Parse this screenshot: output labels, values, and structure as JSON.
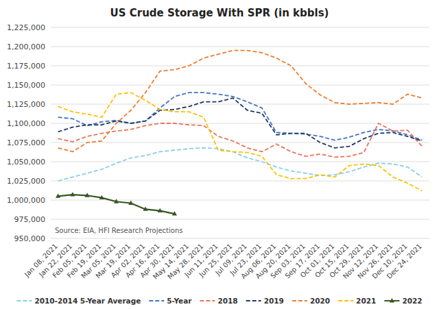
{
  "chart_data": {
    "type": "line",
    "title": "US Crude Storage With SPR (in kbbls)",
    "annotations": [
      "Source: EIA, HFI Research Projections"
    ],
    "categories": [
      "Jan 08, 2021",
      "Jan 22, 2021",
      "Feb 05, 2021",
      "Feb 19, 2021",
      "Mar 05, 2021",
      "Mar 19, 2021",
      "Apr 02, 2021",
      "Apr 16, 2021",
      "Apr 30, 2021",
      "May 14, 2021",
      "May 28, 2021",
      "Jun 11, 2021",
      "Jun 25, 2021",
      "Jul 09, 2021",
      "Jul 23, 2021",
      "Aug 06, 2021",
      "Aug 20, 2021",
      "Sep 03, 2021",
      "Sep 17, 2021",
      "Oct 01, 2021",
      "Oct 15, 2021",
      "Oct 29, 2021",
      "Nov 12, 2021",
      "Nov 26, 2021",
      "Dec 10, 2021",
      "Dec 24, 2021"
    ],
    "series": [
      {
        "name": "2010-2014 5-Year Average",
        "color": "#87CEEB",
        "line_style": "dashed",
        "values": [
          1025000,
          1030000,
          1035000,
          1040000,
          1048000,
          1055000,
          1058000,
          1063000,
          1065000,
          1067000,
          1068000,
          1067000,
          1063000,
          1055000,
          1050000,
          1043000,
          1038000,
          1035000,
          1032000,
          1033000,
          1037000,
          1043000,
          1048000,
          1047000,
          1043000,
          1030000
        ]
      },
      {
        "name": "5-Year",
        "color": "#4472C4",
        "line_style": "dashed",
        "values": [
          1108000,
          1106000,
          1097000,
          1102000,
          1104000,
          1100000,
          1103000,
          1120000,
          1135000,
          1140000,
          1140000,
          1138000,
          1135000,
          1128000,
          1120000,
          1088000,
          1087000,
          1086000,
          1083000,
          1078000,
          1082000,
          1088000,
          1092000,
          1090000,
          1085000,
          1078000
        ]
      },
      {
        "name": "2018",
        "color": "#E8735A",
        "line_style": "dashed",
        "values": [
          1080000,
          1076000,
          1083000,
          1087000,
          1090000,
          1092000,
          1097000,
          1100000,
          1100000,
          1098000,
          1097000,
          1083000,
          1077000,
          1068000,
          1063000,
          1073000,
          1063000,
          1057000,
          1060000,
          1056000,
          1057000,
          1062000,
          1100000,
          1090000,
          1091000,
          1070000
        ]
      },
      {
        "name": "2019",
        "color": "#1F3864",
        "line_style": "dashed",
        "values": [
          1089000,
          1095000,
          1098000,
          1098000,
          1103000,
          1100000,
          1103000,
          1117000,
          1118000,
          1122000,
          1128000,
          1128000,
          1133000,
          1117000,
          1113000,
          1085000,
          1087000,
          1087000,
          1075000,
          1068000,
          1070000,
          1080000,
          1087000,
          1088000,
          1083000,
          1077000
        ]
      },
      {
        "name": "2020",
        "color": "#ED7D31",
        "line_style": "dashed",
        "values": [
          1068000,
          1063000,
          1075000,
          1077000,
          1100000,
          1117000,
          1140000,
          1168000,
          1170000,
          1175000,
          1185000,
          1190000,
          1195000,
          1195000,
          1192000,
          1185000,
          1175000,
          1152000,
          1137000,
          1127000,
          1125000,
          1126000,
          1127000,
          1125000,
          1138000,
          1133000
        ]
      },
      {
        "name": "2021",
        "color": "#FFC000",
        "line_style": "dashed",
        "values": [
          1122000,
          1115000,
          1112000,
          1108000,
          1138000,
          1140000,
          1130000,
          1118000,
          1115000,
          1115000,
          1108000,
          1065000,
          1063000,
          1062000,
          1057000,
          1033000,
          1028000,
          1028000,
          1033000,
          1030000,
          1045000,
          1047000,
          1045000,
          1030000,
          1022000,
          1012000
        ]
      },
      {
        "name": "2022",
        "color": "#375623",
        "line_style": "solid",
        "marker": "triangle",
        "values": [
          1005000,
          1007000,
          1006000,
          1003000,
          998000,
          996000,
          988000,
          986000,
          982000,
          null,
          null,
          null,
          null,
          null,
          null,
          null,
          null,
          null,
          null,
          null,
          null,
          null,
          null,
          null,
          null,
          null
        ]
      }
    ],
    "ylim": [
      950000,
      1225000
    ],
    "yticks": [
      {
        "value": 950000,
        "label": "950,000"
      },
      {
        "value": 975000,
        "label": "975,000"
      },
      {
        "value": 1000000,
        "label": "1,000,000"
      },
      {
        "value": 1025000,
        "label": "1,025,000"
      },
      {
        "value": 1050000,
        "label": "1,050,000"
      },
      {
        "value": 1075000,
        "label": "1,075,000"
      },
      {
        "value": 1100000,
        "label": "1,100,000"
      },
      {
        "value": 1125000,
        "label": "1,125,000"
      },
      {
        "value": 1150000,
        "label": "1,150,000"
      },
      {
        "value": 1175000,
        "label": "1,175,000"
      },
      {
        "value": 1200000,
        "label": "1,200,000"
      },
      {
        "value": 1225000,
        "label": "1,225,000"
      }
    ],
    "grid": true,
    "legend": "bottom"
  }
}
